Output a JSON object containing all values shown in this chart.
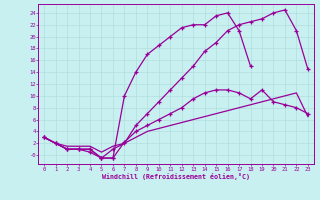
{
  "xlabel": "Windchill (Refroidissement éolien,°C)",
  "bg_color": "#c8f0f0",
  "line_color": "#990099",
  "xlim": [
    -0.5,
    23.5
  ],
  "ylim": [
    -1.5,
    25.5
  ],
  "xticks": [
    0,
    1,
    2,
    3,
    4,
    5,
    6,
    7,
    8,
    9,
    10,
    11,
    12,
    13,
    14,
    15,
    16,
    17,
    18,
    19,
    20,
    21,
    22,
    23
  ],
  "yticks": [
    0,
    2,
    4,
    6,
    8,
    10,
    12,
    14,
    16,
    18,
    20,
    22,
    24
  ],
  "ytick_labels": [
    "-0",
    "2",
    "4",
    "6",
    "8",
    "10",
    "12",
    "14",
    "16",
    "18",
    "20",
    "22",
    "24"
  ],
  "grid_color": "#b0dede",
  "curves": [
    {
      "x": [
        0,
        1,
        2,
        3,
        4,
        5,
        6,
        7,
        8,
        9,
        10,
        11,
        12,
        13,
        14,
        15,
        16,
        17,
        18,
        19,
        20,
        21,
        22,
        23
      ],
      "y": [
        3,
        2,
        1,
        1,
        1,
        -0.5,
        -0.5,
        2.2,
        4,
        5,
        6,
        7,
        8,
        9.5,
        10.5,
        11,
        11,
        10.5,
        9.5,
        11,
        9,
        8.5,
        8,
        7
      ],
      "marker": true,
      "lw": 0.9
    },
    {
      "x": [
        0,
        1,
        2,
        3,
        4,
        5,
        6,
        7,
        8,
        9,
        10,
        11,
        12,
        13,
        14,
        15,
        16,
        17,
        18
      ],
      "y": [
        3,
        2,
        1,
        1,
        0.5,
        -0.5,
        -0.5,
        10,
        14,
        17,
        18.5,
        20,
        21.5,
        22,
        22,
        23.5,
        24,
        21,
        15
      ],
      "marker": true,
      "lw": 0.9
    },
    {
      "x": [
        0,
        1,
        2,
        3,
        4,
        5,
        6,
        7,
        8,
        9,
        10,
        11,
        12,
        13,
        14,
        15,
        16,
        17,
        18,
        19,
        20,
        21,
        22,
        23
      ],
      "y": [
        3,
        2,
        1,
        1,
        1,
        -0.5,
        1,
        2,
        5,
        7,
        9,
        11,
        13,
        15,
        17.5,
        19,
        21,
        22,
        22.5,
        23,
        24,
        24.5,
        21,
        14.5
      ],
      "marker": true,
      "lw": 0.9
    },
    {
      "x": [
        0,
        1,
        2,
        3,
        4,
        5,
        6,
        7,
        8,
        9,
        10,
        11,
        12,
        13,
        14,
        15,
        16,
        17,
        18,
        19,
        20,
        21,
        22,
        23
      ],
      "y": [
        3,
        2,
        1.5,
        1.5,
        1.5,
        0.5,
        1.5,
        2,
        3,
        4,
        4.5,
        5,
        5.5,
        6,
        6.5,
        7,
        7.5,
        8,
        8.5,
        9,
        9.5,
        10,
        10.5,
        6.5
      ],
      "marker": false,
      "lw": 0.9
    }
  ]
}
